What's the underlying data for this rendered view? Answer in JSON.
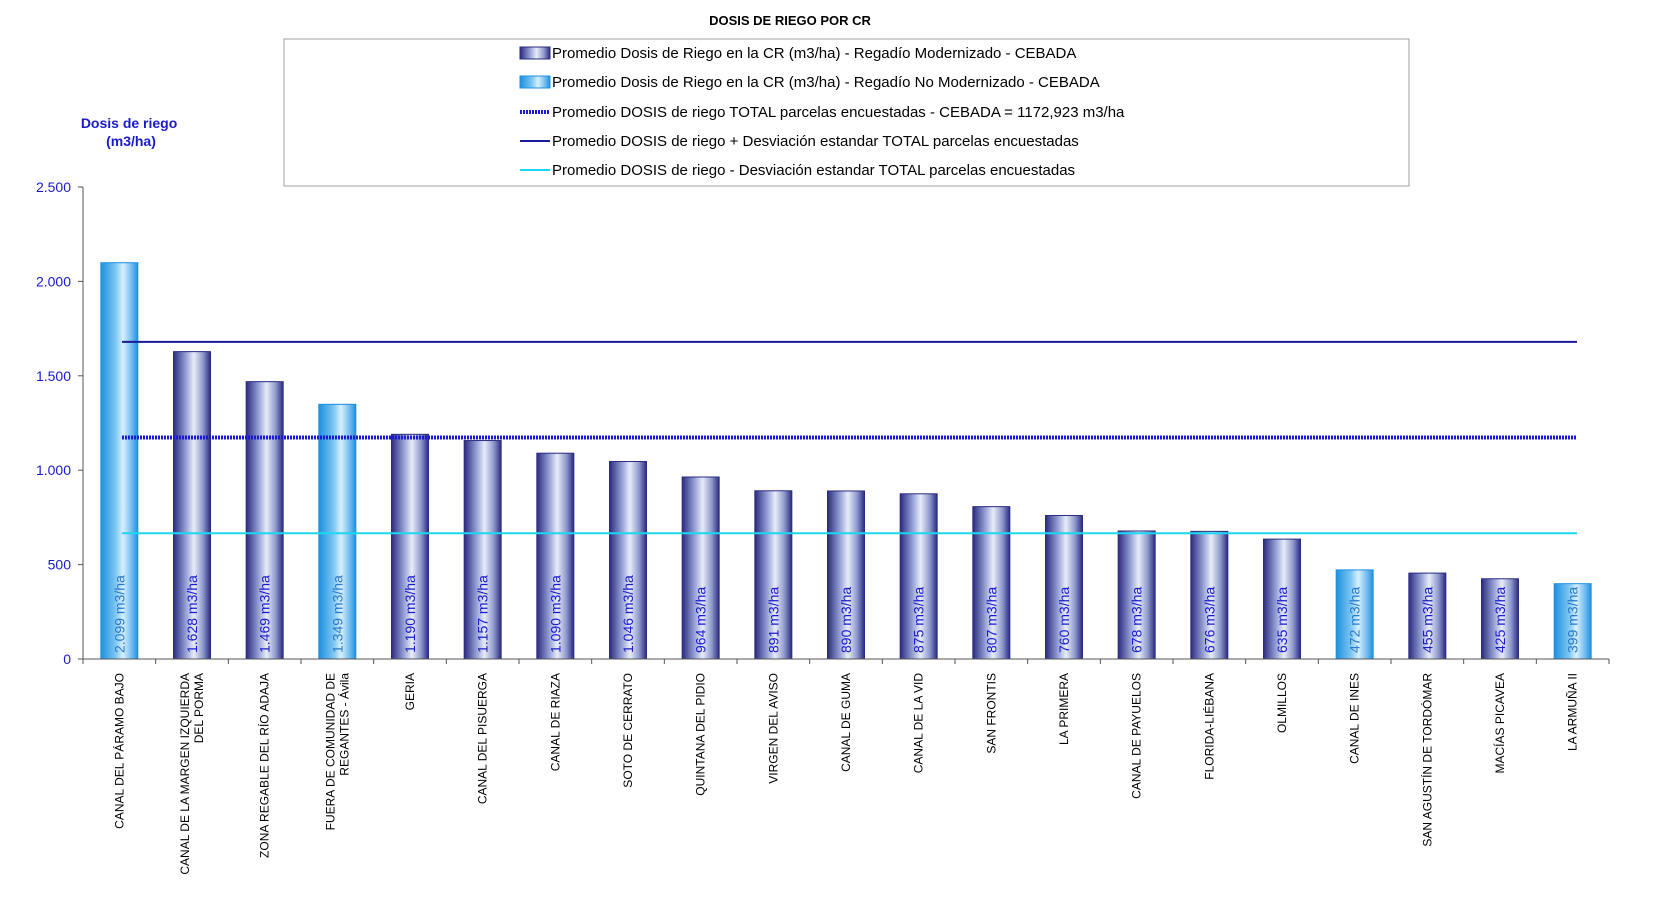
{
  "chart_data": {
    "type": "bar",
    "title": "DOSIS DE RIEGO POR CR",
    "ylabel": "Dosis de riego (m3/ha)",
    "ylabel_lines": [
      "Dosis de riego",
      "(m3/ha)"
    ],
    "ylim": [
      0,
      2500
    ],
    "yticks": [
      0,
      500,
      1000,
      1500,
      2000,
      2500
    ],
    "ytick_labels": [
      "0",
      "500",
      "1.000",
      "1.500",
      "2.000",
      "2.500"
    ],
    "grid": false,
    "legend_position": "top",
    "categories": [
      [
        "CANAL DEL PÁRAMO BAJO"
      ],
      [
        "CANAL DE LA MARGEN IZQUIERDA",
        "DEL PORMA"
      ],
      [
        "ZONA REGABLE DEL RÍO ADAJA"
      ],
      [
        "FUERA DE COMUNIDAD DE",
        "REGANTES - Ávila"
      ],
      [
        "GERIA"
      ],
      [
        "CANAL DEL PISUERGA"
      ],
      [
        "CANAL DE RIAZA"
      ],
      [
        "SOTO DE CERRATO"
      ],
      [
        "QUINTANA DEL PIDIO"
      ],
      [
        "VIRGEN DEL AVISO"
      ],
      [
        "CANAL DE GUMA"
      ],
      [
        "CANAL DE LA VID"
      ],
      [
        "SAN FRONTIS"
      ],
      [
        "LA PRIMERA"
      ],
      [
        "CANAL DE PAYUELOS"
      ],
      [
        "FLORIDA-LIÉBANA"
      ],
      [
        "OLMILLOS"
      ],
      [
        "CANAL DE INES"
      ],
      [
        "SAN AGUSTÍN DE TORDÓMAR"
      ],
      [
        "MACÍAS PICAVEA"
      ],
      [
        "LA ARMUÑA II"
      ]
    ],
    "values": [
      2099,
      1628,
      1469,
      1349,
      1190,
      1157,
      1090,
      1046,
      964,
      891,
      890,
      875,
      807,
      760,
      678,
      676,
      635,
      472,
      455,
      425,
      399
    ],
    "series_type": [
      "no_mod",
      "mod",
      "mod",
      "no_mod",
      "mod",
      "mod",
      "mod",
      "mod",
      "mod",
      "mod",
      "mod",
      "mod",
      "mod",
      "mod",
      "mod",
      "mod",
      "mod",
      "no_mod",
      "mod",
      "mod",
      "no_mod"
    ],
    "data_labels": [
      "2.099 m3/ha",
      "1.628 m3/ha",
      "1.469 m3/ha",
      "1.349 m3/ha",
      "1.190 m3/ha",
      "1.157 m3/ha",
      "1.090 m3/ha",
      "1.046 m3/ha",
      "964 m3/ha",
      "891 m3/ha",
      "890 m3/ha",
      "875 m3/ha",
      "807 m3/ha",
      "760 m3/ha",
      "678 m3/ha",
      "676 m3/ha",
      "635 m3/ha",
      "472 m3/ha",
      "455 m3/ha",
      "425 m3/ha",
      "399 m3/ha"
    ],
    "reference_lines": {
      "mean": 1172.923,
      "mean_plus_sd": 1680,
      "mean_minus_sd": 666
    },
    "legend": [
      "Promedio Dosis de Riego en la CR (m3/ha) - Regadío Modernizado - CEBADA",
      "Promedio Dosis de Riego en la CR (m3/ha) - Regadío No Modernizado - CEBADA",
      "Promedio DOSIS de riego TOTAL parcelas encuestadas - CEBADA = 1172,923 m3/ha",
      "Promedio DOSIS de riego + Desviación estandar TOTAL parcelas encuestadas",
      "Promedio DOSIS de riego - Desviación estandar TOTAL parcelas encuestadas"
    ],
    "colors": {
      "modernizado": "#2b2b80",
      "no_modernizado": "#1e90e0",
      "mean_line": "#1a1acc",
      "plus_sd_line": "#1a1a99",
      "minus_sd_line": "#19d8ef",
      "axis": "#1a1acc"
    }
  }
}
